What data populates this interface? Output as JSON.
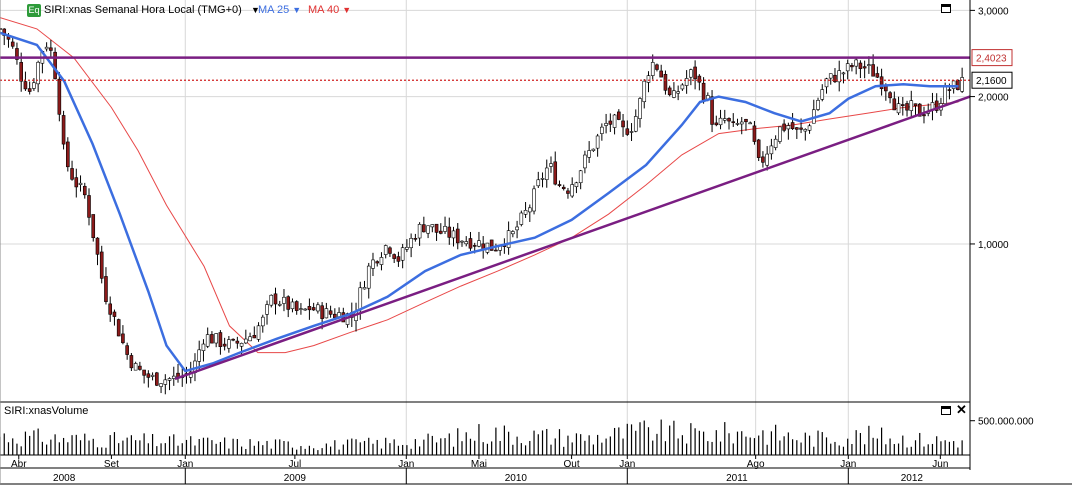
{
  "header": {
    "badge": "Eq",
    "title": "SIRI:xnas Semanal Hora Local (TMG+0)",
    "caret_icon": "▼",
    "ma_short_label": "MA 25",
    "ma_long_label": "MA 40",
    "ma_short_color": "#3c6ee0",
    "ma_long_color": "#e03030"
  },
  "volume_panel": {
    "title": "SIRI:xnasVolume",
    "axis_label": "500.000.000",
    "close_icon": "✕"
  },
  "colors": {
    "up_candle": "#ffffff",
    "down_candle": "#8b1a1a",
    "trend_line": "#7a1e82",
    "resistance_line": "#7a1e82",
    "dotted_line": "#d02020",
    "ma_short": "#3c6ee0",
    "ma_long": "#e84848",
    "volume_bar": "#000000"
  },
  "chart_data": {
    "type": "candlestick",
    "title": "SIRI:xnas Semanal Hora Local (TMG+0)",
    "y_scale": "log",
    "ylim": [
      0.48,
      3.15
    ],
    "y_ticks": [
      {
        "value": 3.0,
        "label": "3,0000"
      },
      {
        "value": 2.0,
        "label": "2,0000"
      },
      {
        "value": 1.0,
        "label": "1,0000"
      }
    ],
    "x_start": "2008-03-01",
    "x_end": "2012-07-20",
    "month_ticks": [
      {
        "date": "2008-04-01",
        "label": "Abr"
      },
      {
        "date": "2008-09-01",
        "label": "Set"
      },
      {
        "date": "2009-01-01",
        "label": "Jan"
      },
      {
        "date": "2009-07-01",
        "label": "Jul"
      },
      {
        "date": "2010-01-01",
        "label": "Jan"
      },
      {
        "date": "2010-05-01",
        "label": "Mai"
      },
      {
        "date": "2010-10-01",
        "label": "Out"
      },
      {
        "date": "2011-01-01",
        "label": "Jan"
      },
      {
        "date": "2011-08-01",
        "label": "Ago"
      },
      {
        "date": "2012-01-01",
        "label": "Jan"
      },
      {
        "date": "2012-06-01",
        "label": "Jun"
      }
    ],
    "year_labels": [
      {
        "date": "2008-06-15",
        "label": "2008"
      },
      {
        "date": "2009-07-01",
        "label": "2009"
      },
      {
        "date": "2010-07-01",
        "label": "2010"
      },
      {
        "date": "2011-07-01",
        "label": "2011"
      },
      {
        "date": "2012-04-15",
        "label": "2012"
      }
    ],
    "year_dividers": [
      "2009-01-01",
      "2010-01-01",
      "2011-01-01",
      "2012-01-01"
    ],
    "vertical_gridlines": [
      "2009-01-01",
      "2010-01-01",
      "2011-01-01",
      "2011-08-01",
      "2012-01-01"
    ],
    "close_path": [
      [
        "2008-03-01",
        2.75
      ],
      [
        "2008-03-20",
        2.55
      ],
      [
        "2008-04-05",
        2.2
      ],
      [
        "2008-04-20",
        2.05
      ],
      [
        "2008-05-10",
        2.5
      ],
      [
        "2008-05-20",
        2.6
      ],
      [
        "2008-06-01",
        2.2
      ],
      [
        "2008-06-15",
        1.5
      ],
      [
        "2008-07-01",
        1.35
      ],
      [
        "2008-07-20",
        1.25
      ],
      [
        "2008-08-05",
        1.0
      ],
      [
        "2008-08-20",
        0.8
      ],
      [
        "2008-09-10",
        0.68
      ],
      [
        "2008-09-25",
        0.6
      ],
      [
        "2008-10-10",
        0.56
      ],
      [
        "2008-10-25",
        0.54
      ],
      [
        "2008-11-10",
        0.53
      ],
      [
        "2008-11-25",
        0.53
      ],
      [
        "2008-12-10",
        0.53
      ],
      [
        "2008-12-25",
        0.535
      ],
      [
        "2009-01-05",
        0.54
      ],
      [
        "2009-01-15",
        0.56
      ],
      [
        "2009-02-01",
        0.65
      ],
      [
        "2009-02-15",
        0.64
      ],
      [
        "2009-03-01",
        0.63
      ],
      [
        "2009-03-20",
        0.62
      ],
      [
        "2009-04-10",
        0.64
      ],
      [
        "2009-04-25",
        0.66
      ],
      [
        "2009-05-10",
        0.7
      ],
      [
        "2009-05-25",
        0.78
      ],
      [
        "2009-06-10",
        0.76
      ],
      [
        "2009-06-25",
        0.74
      ],
      [
        "2009-07-10",
        0.72
      ],
      [
        "2009-07-25",
        0.74
      ],
      [
        "2009-08-10",
        0.73
      ],
      [
        "2009-08-25",
        0.72
      ],
      [
        "2009-09-15",
        0.72
      ],
      [
        "2009-10-05",
        0.71
      ],
      [
        "2009-11-01",
        0.9
      ],
      [
        "2009-11-15",
        0.95
      ],
      [
        "2009-12-01",
        1.0
      ],
      [
        "2009-12-20",
        0.93
      ],
      [
        "2010-01-05",
        1.0
      ],
      [
        "2010-01-20",
        1.07
      ],
      [
        "2010-02-05",
        1.1
      ],
      [
        "2010-02-20",
        1.06
      ],
      [
        "2010-03-10",
        1.05
      ],
      [
        "2010-03-25",
        1.03
      ],
      [
        "2010-04-10",
        1.02
      ],
      [
        "2010-04-25",
        1.01
      ],
      [
        "2010-05-10",
        1.0
      ],
      [
        "2010-05-25",
        0.98
      ],
      [
        "2010-06-10",
        1.02
      ],
      [
        "2010-06-25",
        1.04
      ],
      [
        "2010-07-10",
        1.12
      ],
      [
        "2010-07-25",
        1.2
      ],
      [
        "2010-08-10",
        1.35
      ],
      [
        "2010-08-25",
        1.45
      ],
      [
        "2010-09-10",
        1.32
      ],
      [
        "2010-09-25",
        1.3
      ],
      [
        "2010-10-10",
        1.38
      ],
      [
        "2010-10-25",
        1.5
      ],
      [
        "2010-11-10",
        1.62
      ],
      [
        "2010-11-25",
        1.75
      ],
      [
        "2010-12-10",
        1.78
      ],
      [
        "2010-12-25",
        1.7
      ],
      [
        "2011-01-10",
        1.75
      ],
      [
        "2011-01-20",
        1.9
      ],
      [
        "2011-02-01",
        2.2
      ],
      [
        "2011-02-10",
        2.35
      ],
      [
        "2011-02-20",
        2.3
      ],
      [
        "2011-03-05",
        2.1
      ],
      [
        "2011-03-15",
        1.95
      ],
      [
        "2011-03-25",
        2.05
      ],
      [
        "2011-04-05",
        2.15
      ],
      [
        "2011-04-20",
        2.25
      ],
      [
        "2011-05-01",
        2.1
      ],
      [
        "2011-05-15",
        1.95
      ],
      [
        "2011-05-25",
        1.7
      ],
      [
        "2011-06-10",
        1.8
      ],
      [
        "2011-06-25",
        1.72
      ],
      [
        "2011-07-10",
        1.78
      ],
      [
        "2011-07-25",
        1.7
      ],
      [
        "2011-08-05",
        1.45
      ],
      [
        "2011-08-15",
        1.5
      ],
      [
        "2011-08-25",
        1.6
      ],
      [
        "2011-09-10",
        1.72
      ],
      [
        "2011-09-25",
        1.75
      ],
      [
        "2011-10-10",
        1.68
      ],
      [
        "2011-10-25",
        1.72
      ],
      [
        "2011-11-10",
        1.95
      ],
      [
        "2011-11-25",
        2.15
      ],
      [
        "2011-12-10",
        2.2
      ],
      [
        "2011-12-25",
        2.25
      ],
      [
        "2012-01-10",
        2.32
      ],
      [
        "2012-01-25",
        2.3
      ],
      [
        "2012-02-10",
        2.25
      ],
      [
        "2012-02-25",
        2.15
      ],
      [
        "2012-03-10",
        2.05
      ],
      [
        "2012-03-20",
        1.9
      ],
      [
        "2012-04-01",
        1.85
      ],
      [
        "2012-04-15",
        1.9
      ],
      [
        "2012-04-25",
        1.85
      ],
      [
        "2012-05-10",
        1.88
      ],
      [
        "2012-05-25",
        1.92
      ],
      [
        "2012-06-10",
        2.05
      ],
      [
        "2012-06-25",
        2.1
      ],
      [
        "2012-07-13",
        2.16
      ]
    ],
    "ma25": [
      [
        "2008-03-01",
        2.7
      ],
      [
        "2008-05-01",
        2.55
      ],
      [
        "2008-06-15",
        2.15
      ],
      [
        "2008-08-01",
        1.6
      ],
      [
        "2008-09-15",
        1.15
      ],
      [
        "2008-11-01",
        0.8
      ],
      [
        "2008-12-01",
        0.62
      ],
      [
        "2009-01-01",
        0.55
      ],
      [
        "2009-02-15",
        0.57
      ],
      [
        "2009-04-01",
        0.6
      ],
      [
        "2009-06-01",
        0.64
      ],
      [
        "2009-08-01",
        0.68
      ],
      [
        "2009-10-01",
        0.72
      ],
      [
        "2009-12-01",
        0.78
      ],
      [
        "2010-02-01",
        0.88
      ],
      [
        "2010-04-01",
        0.95
      ],
      [
        "2010-06-01",
        0.99
      ],
      [
        "2010-08-01",
        1.03
      ],
      [
        "2010-10-01",
        1.12
      ],
      [
        "2010-12-01",
        1.27
      ],
      [
        "2011-02-01",
        1.45
      ],
      [
        "2011-04-01",
        1.75
      ],
      [
        "2011-05-01",
        1.95
      ],
      [
        "2011-06-01",
        2.0
      ],
      [
        "2011-07-15",
        1.95
      ],
      [
        "2011-09-01",
        1.85
      ],
      [
        "2011-10-15",
        1.78
      ],
      [
        "2011-12-01",
        1.85
      ],
      [
        "2012-01-01",
        1.98
      ],
      [
        "2012-02-15",
        2.1
      ],
      [
        "2012-04-01",
        2.12
      ],
      [
        "2012-05-15",
        2.1
      ],
      [
        "2012-07-01",
        2.1
      ]
    ],
    "ma40": [
      [
        "2008-03-01",
        2.9
      ],
      [
        "2008-05-01",
        2.75
      ],
      [
        "2008-07-01",
        2.4
      ],
      [
        "2008-09-01",
        1.9
      ],
      [
        "2008-10-15",
        1.55
      ],
      [
        "2008-12-01",
        1.2
      ],
      [
        "2009-02-01",
        0.9
      ],
      [
        "2009-03-15",
        0.68
      ],
      [
        "2009-05-01",
        0.6
      ],
      [
        "2009-06-15",
        0.6
      ],
      [
        "2009-08-01",
        0.62
      ],
      [
        "2009-10-01",
        0.66
      ],
      [
        "2009-12-01",
        0.7
      ],
      [
        "2010-02-01",
        0.76
      ],
      [
        "2010-04-01",
        0.82
      ],
      [
        "2010-06-01",
        0.88
      ],
      [
        "2010-08-01",
        0.95
      ],
      [
        "2010-10-01",
        1.03
      ],
      [
        "2010-12-01",
        1.15
      ],
      [
        "2011-02-01",
        1.32
      ],
      [
        "2011-04-01",
        1.52
      ],
      [
        "2011-06-01",
        1.68
      ],
      [
        "2011-08-01",
        1.72
      ],
      [
        "2011-10-01",
        1.75
      ],
      [
        "2011-12-01",
        1.8
      ],
      [
        "2012-02-01",
        1.85
      ],
      [
        "2012-04-01",
        1.9
      ],
      [
        "2012-07-01",
        1.95
      ]
    ],
    "trend_line": [
      [
        "2008-12-15",
        0.53
      ],
      [
        "2012-07-20",
        2.0
      ]
    ],
    "resistance_level": 2.4023,
    "resistance_label": "2,4023",
    "last_price": 2.16,
    "last_price_label": "2,1600",
    "volume_ylim": [
      0,
      700000000
    ],
    "volume_ticks": [
      {
        "value": 500000000,
        "label": "500.000.000"
      }
    ],
    "volume_profile": [
      [
        "2008-03-01",
        280000000
      ],
      [
        "2008-06-01",
        240000000
      ],
      [
        "2008-09-01",
        220000000
      ],
      [
        "2008-12-01",
        200000000
      ],
      [
        "2009-03-01",
        180000000
      ],
      [
        "2009-06-01",
        160000000
      ],
      [
        "2009-09-01",
        150000000
      ],
      [
        "2009-12-01",
        180000000
      ],
      [
        "2010-03-01",
        220000000
      ],
      [
        "2010-05-10",
        330000000
      ],
      [
        "2010-08-01",
        280000000
      ],
      [
        "2010-11-01",
        250000000
      ],
      [
        "2011-02-01",
        350000000
      ],
      [
        "2011-05-01",
        300000000
      ],
      [
        "2011-08-01",
        330000000
      ],
      [
        "2011-11-01",
        240000000
      ],
      [
        "2012-02-01",
        280000000
      ],
      [
        "2012-05-01",
        220000000
      ],
      [
        "2012-07-20",
        200000000
      ]
    ]
  }
}
